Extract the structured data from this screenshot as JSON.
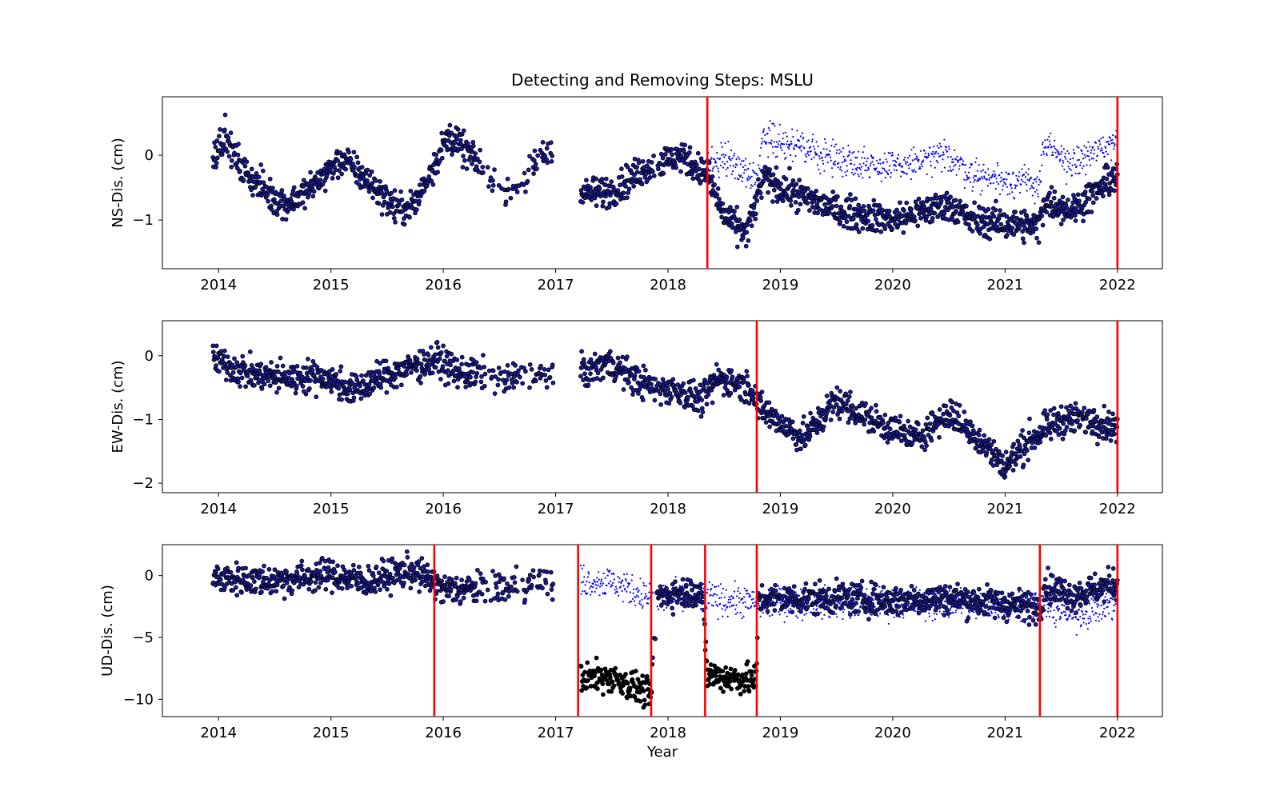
{
  "chart_data": [
    {
      "type": "scatter",
      "title": "Detecting and Removing Steps: MSLU",
      "xlabel": "",
      "ylabel": "NS-Dis. (cm)",
      "x_type": "decimal-year",
      "xlim": [
        2013.5,
        2022.4
      ],
      "ylim": [
        -1.75,
        0.9
      ],
      "xticks": [
        2014,
        2015,
        2016,
        2017,
        2018,
        2019,
        2020,
        2021,
        2022
      ],
      "yticks": [
        -1,
        0
      ],
      "grid": false,
      "step_lines": [
        2018.35,
        2022.0
      ],
      "step_line_color": "#ff0000",
      "series": [
        {
          "role": "original",
          "color": "#0000ff",
          "marker": "small dot",
          "segments": [
            {
              "x": 2018.35,
              "y": -0.2
            },
            {
              "x": 2018.5,
              "y": 0.0
            },
            {
              "x": 2018.8,
              "y": -0.4
            },
            {
              "x": 2018.85,
              "y": 0.35
            },
            {
              "x": 2019.0,
              "y": 0.2
            },
            {
              "x": 2019.5,
              "y": -0.05
            },
            {
              "x": 2020.0,
              "y": -0.2
            },
            {
              "x": 2020.5,
              "y": 0.0
            },
            {
              "x": 2020.7,
              "y": -0.3
            },
            {
              "x": 2021.3,
              "y": -0.45
            },
            {
              "x": 2021.35,
              "y": 0.15
            },
            {
              "x": 2021.6,
              "y": -0.15
            },
            {
              "x": 2022.0,
              "y": 0.25
            }
          ]
        },
        {
          "role": "corrected",
          "color": "#000000",
          "marker": "filled circle",
          "segments": [
            {
              "x": 2013.95,
              "y": 0.0
            },
            {
              "x": 2014.05,
              "y": 0.3
            },
            {
              "x": 2014.2,
              "y": -0.2
            },
            {
              "x": 2014.45,
              "y": -0.6
            },
            {
              "x": 2014.6,
              "y": -0.75
            },
            {
              "x": 2014.8,
              "y": -0.55
            },
            {
              "x": 2015.0,
              "y": -0.2
            },
            {
              "x": 2015.1,
              "y": -0.05
            },
            {
              "x": 2015.3,
              "y": -0.35
            },
            {
              "x": 2015.6,
              "y": -0.85
            },
            {
              "x": 2015.75,
              "y": -0.75
            },
            {
              "x": 2015.9,
              "y": -0.2
            },
            {
              "x": 2016.05,
              "y": 0.3
            },
            {
              "x": 2016.3,
              "y": -0.1
            },
            {
              "x": 2016.5,
              "y": -0.6
            },
            {
              "x": 2016.7,
              "y": -0.45
            },
            {
              "x": 2016.95,
              "y": 0.15
            },
            {
              "x": 2017.25,
              "y": -0.6
            },
            {
              "x": 2017.5,
              "y": -0.55
            },
            {
              "x": 2017.8,
              "y": -0.2
            },
            {
              "x": 2017.95,
              "y": -0.1
            },
            {
              "x": 2018.1,
              "y": 0.0
            },
            {
              "x": 2018.35,
              "y": -0.3
            },
            {
              "x": 2018.5,
              "y": -0.95
            },
            {
              "x": 2018.7,
              "y": -1.2
            },
            {
              "x": 2018.85,
              "y": -0.35
            },
            {
              "x": 2019.0,
              "y": -0.5
            },
            {
              "x": 2019.5,
              "y": -0.85
            },
            {
              "x": 2020.0,
              "y": -1.0
            },
            {
              "x": 2020.5,
              "y": -0.75
            },
            {
              "x": 2020.7,
              "y": -1.0
            },
            {
              "x": 2021.3,
              "y": -1.1
            },
            {
              "x": 2021.35,
              "y": -0.7
            },
            {
              "x": 2021.6,
              "y": -0.85
            },
            {
              "x": 2022.0,
              "y": -0.3
            }
          ]
        }
      ]
    },
    {
      "type": "scatter",
      "title": "",
      "xlabel": "",
      "ylabel": "EW-Dis. (cm)",
      "x_type": "decimal-year",
      "xlim": [
        2013.5,
        2022.4
      ],
      "ylim": [
        -2.15,
        0.55
      ],
      "xticks": [
        2014,
        2015,
        2016,
        2017,
        2018,
        2019,
        2020,
        2021,
        2022
      ],
      "yticks": [
        -2,
        -1,
        0
      ],
      "grid": false,
      "step_lines": [
        2018.79,
        2022.0
      ],
      "step_line_color": "#ff0000",
      "series": [
        {
          "role": "corrected",
          "color": "#000000",
          "marker": "filled circle",
          "segments": [
            {
              "x": 2013.95,
              "y": -0.05
            },
            {
              "x": 2014.3,
              "y": -0.3
            },
            {
              "x": 2014.6,
              "y": -0.35
            },
            {
              "x": 2014.9,
              "y": -0.3
            },
            {
              "x": 2015.2,
              "y": -0.55
            },
            {
              "x": 2015.5,
              "y": -0.3
            },
            {
              "x": 2015.95,
              "y": -0.05
            },
            {
              "x": 2016.1,
              "y": -0.25
            },
            {
              "x": 2016.5,
              "y": -0.35
            },
            {
              "x": 2016.95,
              "y": -0.3
            },
            {
              "x": 2017.3,
              "y": -0.25
            },
            {
              "x": 2017.45,
              "y": -0.1
            },
            {
              "x": 2017.8,
              "y": -0.45
            },
            {
              "x": 2018.1,
              "y": -0.55
            },
            {
              "x": 2018.3,
              "y": -0.7
            },
            {
              "x": 2018.45,
              "y": -0.35
            },
            {
              "x": 2018.75,
              "y": -0.5
            },
            {
              "x": 2018.8,
              "y": -0.8
            },
            {
              "x": 2019.0,
              "y": -1.05
            },
            {
              "x": 2019.2,
              "y": -1.3
            },
            {
              "x": 2019.5,
              "y": -0.7
            },
            {
              "x": 2019.8,
              "y": -1.0
            },
            {
              "x": 2020.2,
              "y": -1.3
            },
            {
              "x": 2020.5,
              "y": -0.9
            },
            {
              "x": 2020.8,
              "y": -1.35
            },
            {
              "x": 2021.0,
              "y": -1.75
            },
            {
              "x": 2021.2,
              "y": -1.35
            },
            {
              "x": 2021.5,
              "y": -1.0
            },
            {
              "x": 2021.8,
              "y": -1.0
            },
            {
              "x": 2022.0,
              "y": -1.15
            }
          ]
        }
      ]
    },
    {
      "type": "scatter",
      "title": "",
      "xlabel": "Year",
      "ylabel": "UD-Dis. (cm)",
      "x_type": "decimal-year",
      "xlim": [
        2013.5,
        2022.4
      ],
      "ylim": [
        -11.4,
        2.5
      ],
      "xticks": [
        2014,
        2015,
        2016,
        2017,
        2018,
        2019,
        2020,
        2021,
        2022
      ],
      "yticks": [
        -10,
        -5,
        0
      ],
      "grid": false,
      "step_lines": [
        2015.92,
        2017.2,
        2017.85,
        2018.33,
        2018.79,
        2021.31,
        2022.0
      ],
      "step_line_color": "#ff0000",
      "series": [
        {
          "role": "original",
          "color": "#0000ff",
          "marker": "small dot",
          "segments": [
            {
              "x": 2017.2,
              "y": -0.4
            },
            {
              "x": 2017.5,
              "y": -0.5
            },
            {
              "x": 2017.85,
              "y": -1.8
            },
            {
              "x": 2018.35,
              "y": -1.8
            },
            {
              "x": 2018.79,
              "y": -2.2
            },
            {
              "x": 2021.31,
              "y": -2.3
            },
            {
              "x": 2021.6,
              "y": -3.2
            },
            {
              "x": 2022.0,
              "y": -2.2
            }
          ]
        },
        {
          "role": "corrected",
          "color": "#000000",
          "marker": "filled circle",
          "segments": [
            {
              "x": 2013.95,
              "y": -0.2
            },
            {
              "x": 2014.5,
              "y": -0.4
            },
            {
              "x": 2015.0,
              "y": 0.1
            },
            {
              "x": 2015.3,
              "y": -0.5
            },
            {
              "x": 2015.7,
              "y": 0.4
            },
            {
              "x": 2015.92,
              "y": -0.5
            },
            {
              "x": 2016.0,
              "y": -1.2
            },
            {
              "x": 2016.5,
              "y": -0.9
            },
            {
              "x": 2016.95,
              "y": -0.3
            },
            {
              "x": 2017.2,
              "y": -8.3
            },
            {
              "x": 2017.5,
              "y": -8.2
            },
            {
              "x": 2017.85,
              "y": -9.6
            },
            {
              "x": 2017.9,
              "y": -1.6
            },
            {
              "x": 2018.3,
              "y": -1.2
            },
            {
              "x": 2018.35,
              "y": -8.0
            },
            {
              "x": 2018.79,
              "y": -8.5
            },
            {
              "x": 2018.8,
              "y": -1.9
            },
            {
              "x": 2019.5,
              "y": -1.8
            },
            {
              "x": 2020.0,
              "y": -2.0
            },
            {
              "x": 2020.5,
              "y": -1.8
            },
            {
              "x": 2021.31,
              "y": -2.6
            },
            {
              "x": 2021.35,
              "y": -0.8
            },
            {
              "x": 2021.6,
              "y": -1.6
            },
            {
              "x": 2022.0,
              "y": -0.6
            }
          ]
        }
      ]
    }
  ]
}
